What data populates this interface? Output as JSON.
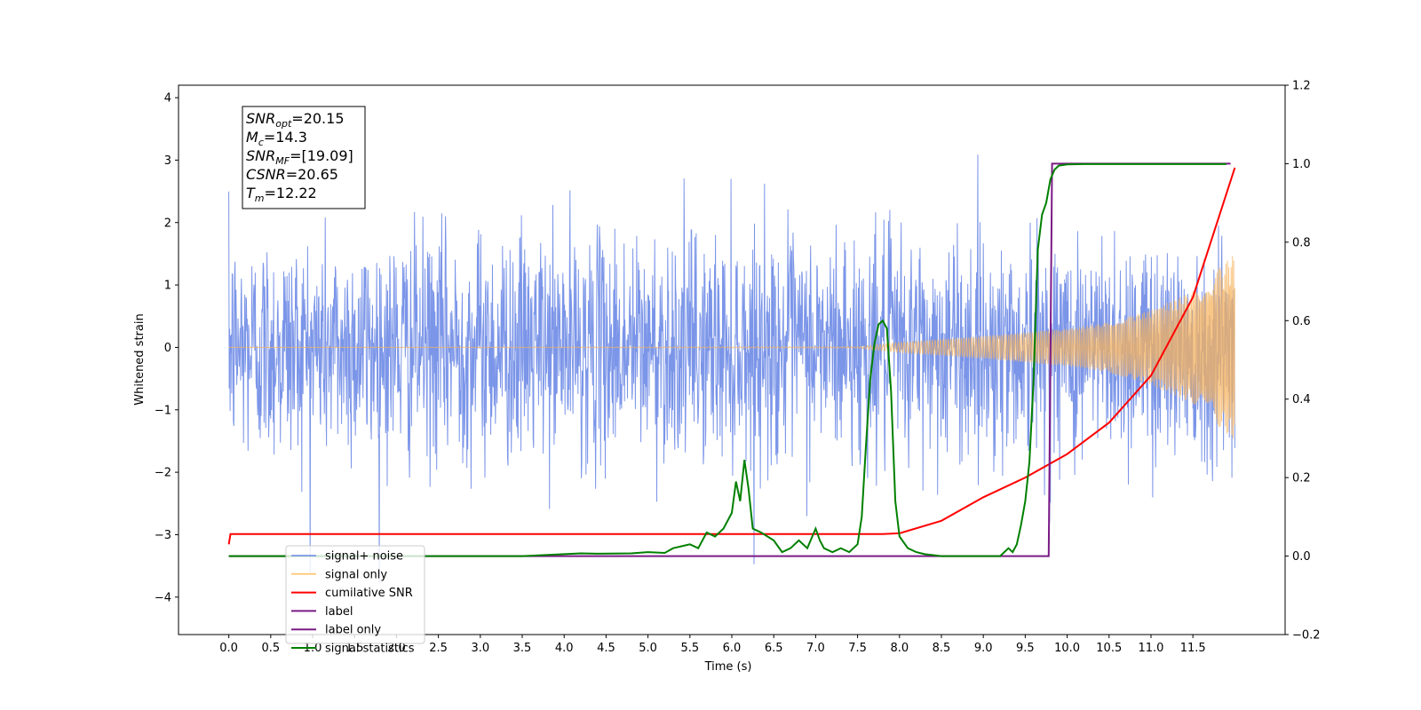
{
  "chart_data": {
    "type": "line",
    "title": "",
    "xlabel": "Time (s)",
    "ylabel": "Whitened strain",
    "xlim": [
      -0.6,
      12.6
    ],
    "ylim": [
      -4.6,
      4.2
    ],
    "ylim_right": [
      -0.2,
      1.2
    ],
    "x_ticks": [
      "0.0",
      "0.5",
      "1.0",
      "1.5",
      "2.0",
      "2.5",
      "3.0",
      "3.5",
      "4.0",
      "4.5",
      "5.0",
      "5.5",
      "6.0",
      "6.5",
      "7.0",
      "7.5",
      "8.0",
      "8.5",
      "9.0",
      "9.5",
      "10.0",
      "10.5",
      "11.0",
      "11.5"
    ],
    "y_ticks_left": [
      "−4",
      "−3",
      "−2",
      "−1",
      "0",
      "1",
      "2",
      "3",
      "4"
    ],
    "y_ticks_right": [
      "−0.2",
      "0.0",
      "0.2",
      "0.4",
      "0.6",
      "0.8",
      "1.0",
      "1.2"
    ],
    "grid": false,
    "legend_position": "lower-left",
    "annotation": [
      {
        "main": "SNR",
        "sub": "opt",
        "rest": "=20.15"
      },
      {
        "main": "M",
        "sub": "c",
        "rest": "=14.3"
      },
      {
        "main": "SNR",
        "sub": "MF",
        "rest": "=[19.09]"
      },
      {
        "main": "CSNR",
        "sub": "",
        "rest": "=20.65"
      },
      {
        "main": "T",
        "sub": "m",
        "rest": "=12.22"
      }
    ],
    "series": [
      {
        "name": "signal+ noise",
        "color": "#6d8ae6",
        "axis": "left",
        "description": "whitened strain, noise std approx 0.9, spikes up to about 3.8",
        "x_range": [
          0.0,
          12.0
        ],
        "noise_level": 0.9
      },
      {
        "name": "signal only",
        "color": "#f5b35d",
        "axis": "left",
        "description": "chirp with growing amplitude",
        "x_range": [
          0.0,
          12.0
        ],
        "envelope": {
          "x": [
            0,
            7.5,
            8,
            9,
            10,
            10.5,
            11,
            11.5,
            12.0
          ],
          "y": [
            0.0,
            0.01,
            0.08,
            0.18,
            0.3,
            0.4,
            0.6,
            0.9,
            1.5
          ]
        }
      },
      {
        "name": "cumilative SNR",
        "color": "#ff0000",
        "axis": "right",
        "x": [
          0.0,
          0.02,
          7.8,
          8.0,
          8.5,
          9.0,
          9.5,
          10.0,
          10.5,
          11.0,
          11.5,
          12.0
        ],
        "y": [
          0.03,
          0.056,
          0.056,
          0.058,
          0.09,
          0.15,
          0.2,
          0.26,
          0.34,
          0.46,
          0.66,
          0.99
        ]
      },
      {
        "name": "label",
        "color": "#7b1a86",
        "axis": "right",
        "x": [
          0.0,
          9.78,
          9.82,
          11.95
        ],
        "y": [
          0.0,
          0.0,
          1.0,
          1.0
        ]
      },
      {
        "name": "label only",
        "color": "#7b1a86",
        "axis": "right",
        "x": [],
        "y": []
      },
      {
        "name": "signal statistics",
        "color": "#008000",
        "axis": "right",
        "x": [
          0.0,
          3.5,
          4.0,
          4.2,
          4.4,
          4.8,
          5.0,
          5.2,
          5.3,
          5.4,
          5.5,
          5.6,
          5.7,
          5.8,
          5.9,
          6.0,
          6.05,
          6.1,
          6.15,
          6.2,
          6.25,
          6.3,
          6.35,
          6.5,
          6.6,
          6.7,
          6.8,
          6.9,
          7.0,
          7.05,
          7.1,
          7.2,
          7.3,
          7.4,
          7.5,
          7.55,
          7.6,
          7.65,
          7.7,
          7.75,
          7.8,
          7.85,
          7.9,
          7.95,
          8.0,
          8.1,
          8.2,
          8.3,
          8.5,
          9.0,
          9.2,
          9.3,
          9.35,
          9.4,
          9.45,
          9.5,
          9.55,
          9.6,
          9.65,
          9.7,
          9.75,
          9.8,
          9.85,
          9.9,
          10.0,
          10.2,
          11.9
        ],
        "y": [
          0.0,
          0.0,
          0.005,
          0.007,
          0.006,
          0.007,
          0.01,
          0.008,
          0.02,
          0.025,
          0.03,
          0.02,
          0.06,
          0.05,
          0.07,
          0.11,
          0.19,
          0.14,
          0.245,
          0.17,
          0.07,
          0.065,
          0.06,
          0.04,
          0.01,
          0.02,
          0.04,
          0.02,
          0.07,
          0.04,
          0.02,
          0.01,
          0.02,
          0.01,
          0.03,
          0.1,
          0.28,
          0.45,
          0.54,
          0.59,
          0.6,
          0.58,
          0.42,
          0.14,
          0.05,
          0.02,
          0.01,
          0.005,
          0.0,
          0.0,
          0.0,
          0.02,
          0.01,
          0.03,
          0.08,
          0.14,
          0.24,
          0.45,
          0.78,
          0.87,
          0.9,
          0.96,
          0.985,
          0.995,
          0.998,
          0.999,
          0.999
        ]
      }
    ]
  }
}
